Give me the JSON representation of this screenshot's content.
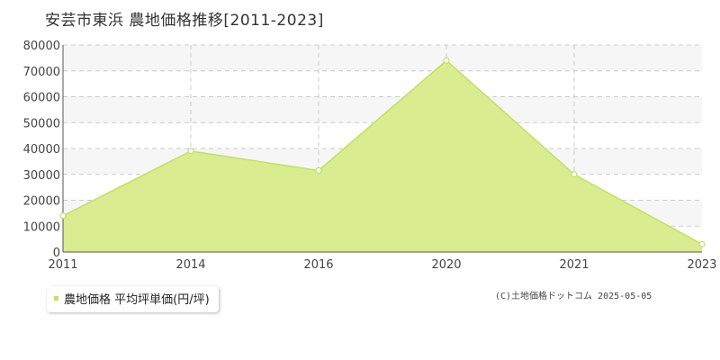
{
  "chart_data": {
    "type": "area",
    "title": "安芸市東浜 農地価格推移[2011-2023]",
    "x": [
      "2011",
      "2014",
      "2016",
      "2020",
      "2021",
      "2023"
    ],
    "series": [
      {
        "name": "農地価格 平均坪単価(円/坪)",
        "values": [
          14000,
          39000,
          31500,
          74000,
          30000,
          3000
        ]
      }
    ],
    "ylim": [
      0,
      80000
    ],
    "yticks": [
      0,
      10000,
      20000,
      30000,
      40000,
      50000,
      60000,
      70000,
      80000
    ],
    "grid": true,
    "legend_position": "bottom-left",
    "colors": {
      "fill": "#d9ec8f",
      "line": "#c3e063",
      "marker_fill": "#ffffff",
      "grid": "#cccccc",
      "band": "#f6f6f6"
    }
  },
  "credit": "(C)土地価格ドットコム 2025-05-05"
}
